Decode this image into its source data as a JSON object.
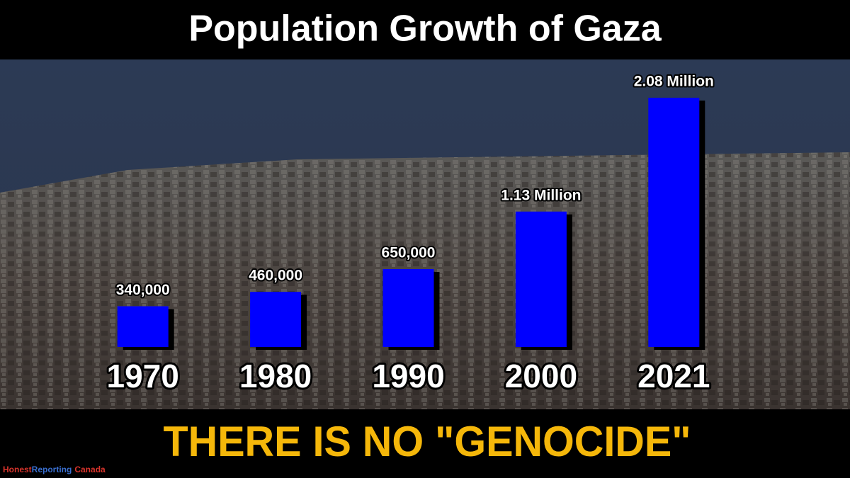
{
  "chart_data": {
    "type": "bar",
    "title": "Population Growth of Gaza",
    "categories": [
      "1970",
      "1980",
      "1990",
      "2000",
      "2021"
    ],
    "values": [
      340000,
      460000,
      650000,
      1130000,
      2080000
    ],
    "value_labels": [
      "340,000",
      "460,000",
      "650,000",
      "1.13 Million",
      "2.08 Million"
    ],
    "color": "#0000ff",
    "caption": "THERE IS NO \"GENOCIDE\"",
    "watermark": [
      "Honest",
      "Reporting",
      "Canada"
    ]
  }
}
